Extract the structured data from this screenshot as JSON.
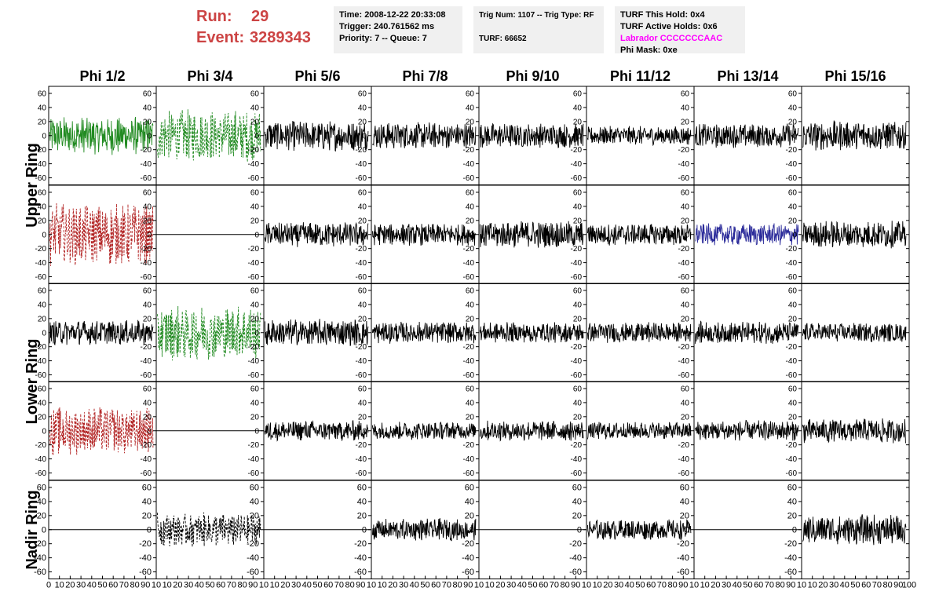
{
  "run": {
    "run_label": "Run:",
    "run_value": "29",
    "event_label": "Event:",
    "event_value": "3289343"
  },
  "info": {
    "time": "Time: 2008-12-22 20:33:08",
    "trigger": "Trigger: 240.761562 ms",
    "priority": "Priority: 7 -- Queue: 7",
    "trig": "Trig Num: 1107 -- Trig Type: RF",
    "turf": "TURF: 66652",
    "hold": "TURF This Hold: 0x4",
    "active": "TURF Active Holds: 0x6",
    "labrador": "Labrador CCCCCCCAAC",
    "phimask": "Phi Mask: 0xe"
  },
  "colors": {
    "green": "#228b22",
    "red": "#b22222",
    "blue": "#2b2b9a",
    "black": "#000000",
    "magenta": "#ff00ff",
    "run_text": "#cc4444"
  },
  "chart_data": {
    "type": "line",
    "columns": [
      "Phi 1/2",
      "Phi 3/4",
      "Phi 5/6",
      "Phi 7/8",
      "Phi 9/10",
      "Phi 11/12",
      "Phi 13/14",
      "Phi 15/16"
    ],
    "ring_labels": [
      "Upper Ring",
      "Lower Ring",
      "Nadir Ring"
    ],
    "rows": [
      "Upper Ring",
      "Upper Ring",
      "Lower Ring",
      "Lower Ring",
      "Nadir Ring"
    ],
    "ylim": [
      -70,
      70
    ],
    "yticks": [
      -60,
      -40,
      -20,
      0,
      20,
      40,
      60
    ],
    "xlim": [
      0,
      100
    ],
    "xticks": [
      0,
      10,
      20,
      30,
      40,
      50,
      60,
      70,
      80,
      90,
      100
    ],
    "x_tick_labels": [
      [
        "0",
        "10",
        "20",
        "30",
        "40",
        "50",
        "60",
        "70",
        "80",
        "90",
        "10"
      ],
      [
        "",
        "10",
        "20",
        "30",
        "40",
        "50",
        "60",
        "70",
        "80",
        "90",
        "10"
      ],
      [
        "",
        "10",
        "20",
        "30",
        "40",
        "50",
        "60",
        "70",
        "80",
        "90",
        "10"
      ],
      [
        "",
        "10",
        "20",
        "30",
        "40",
        "50",
        "60",
        "70",
        "80",
        "90",
        "10"
      ],
      [
        "",
        "10",
        "20",
        "30",
        "40",
        "50",
        "60",
        "70",
        "80",
        "90",
        "10"
      ],
      [
        "",
        "10",
        "20",
        "30",
        "40",
        "50",
        "60",
        "70",
        "80",
        "90",
        "10"
      ],
      [
        "",
        "10",
        "20",
        "30",
        "40",
        "50",
        "60",
        "70",
        "80",
        "90",
        "10"
      ],
      [
        "",
        "10",
        "20",
        "30",
        "40",
        "50",
        "60",
        "70",
        "80",
        "90",
        "100"
      ]
    ],
    "panels": [
      [
        {
          "style": "solid",
          "color": "green",
          "amp": 28
        },
        {
          "style": "dashed",
          "color": "green",
          "amp": 38
        },
        {
          "style": "solid",
          "color": "black",
          "amp": 22
        },
        {
          "style": "solid",
          "color": "black",
          "amp": 20
        },
        {
          "style": "solid",
          "color": "black",
          "amp": 18
        },
        {
          "style": "solid",
          "color": "black",
          "amp": 14
        },
        {
          "style": "solid",
          "color": "black",
          "amp": 18
        },
        {
          "style": "solid",
          "color": "black",
          "amp": 22
        }
      ],
      [
        {
          "style": "dashed",
          "color": "red",
          "amp": 45
        },
        {
          "style": "flat",
          "color": "black",
          "amp": 0
        },
        {
          "style": "solid",
          "color": "black",
          "amp": 18
        },
        {
          "style": "solid",
          "color": "black",
          "amp": 16
        },
        {
          "style": "solid",
          "color": "black",
          "amp": 20
        },
        {
          "style": "solid",
          "color": "black",
          "amp": 16
        },
        {
          "style": "solid",
          "color": "blue",
          "amp": 16
        },
        {
          "style": "solid",
          "color": "black",
          "amp": 20
        }
      ],
      [
        {
          "style": "solid",
          "color": "black",
          "amp": 18
        },
        {
          "style": "dashed",
          "color": "green",
          "amp": 40
        },
        {
          "style": "solid",
          "color": "black",
          "amp": 20
        },
        {
          "style": "solid",
          "color": "black",
          "amp": 16
        },
        {
          "style": "solid",
          "color": "black",
          "amp": 15
        },
        {
          "style": "solid",
          "color": "black",
          "amp": 15
        },
        {
          "style": "solid",
          "color": "black",
          "amp": 16
        },
        {
          "style": "solid",
          "color": "black",
          "amp": 14
        }
      ],
      [
        {
          "style": "dashed",
          "color": "red",
          "amp": 35
        },
        {
          "style": "flat",
          "color": "black",
          "amp": 0
        },
        {
          "style": "solid",
          "color": "black",
          "amp": 15
        },
        {
          "style": "solid",
          "color": "black",
          "amp": 13
        },
        {
          "style": "solid",
          "color": "black",
          "amp": 15
        },
        {
          "style": "solid",
          "color": "black",
          "amp": 13
        },
        {
          "style": "solid",
          "color": "black",
          "amp": 15
        },
        {
          "style": "solid",
          "color": "black",
          "amp": 18
        }
      ],
      [
        {
          "style": "flat",
          "color": "black",
          "amp": 0
        },
        {
          "style": "dashed",
          "color": "black",
          "amp": 25
        },
        {
          "style": "flat",
          "color": "black",
          "amp": 0
        },
        {
          "style": "solid",
          "color": "black",
          "amp": 16
        },
        {
          "style": "flat",
          "color": "black",
          "amp": 0
        },
        {
          "style": "solid",
          "color": "black",
          "amp": 15
        },
        {
          "style": "flat",
          "color": "black",
          "amp": 0
        },
        {
          "style": "solid",
          "color": "black",
          "amp": 22
        }
      ]
    ]
  }
}
